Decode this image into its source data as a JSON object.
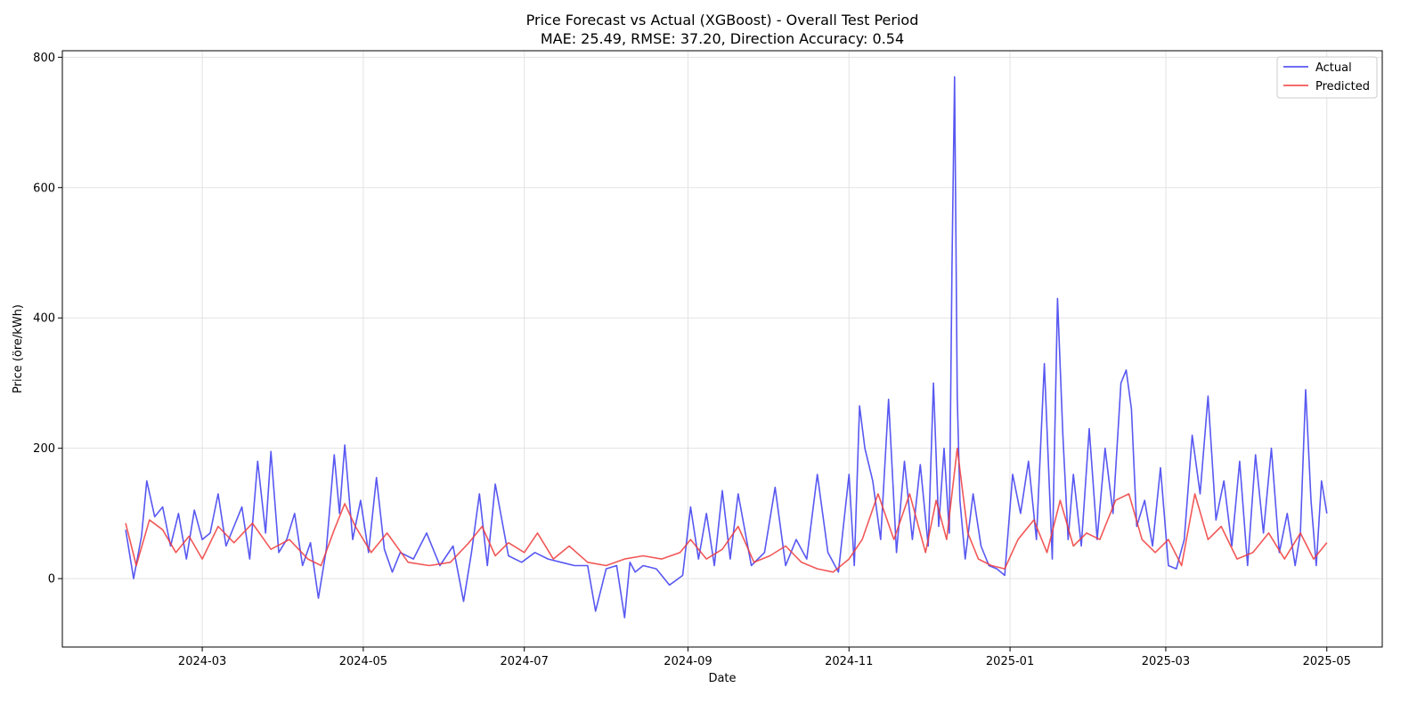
{
  "chart_data": {
    "type": "line",
    "title": "Price Forecast vs Actual (XGBoost) - Overall Test Period",
    "subtitle": "MAE: 25.49, RMSE: 37.20, Direction Accuracy: 0.54",
    "xlabel": "Date",
    "ylabel": "Price (öre/kWh)",
    "x_range": [
      "2024-01-08",
      "2025-05-22"
    ],
    "ylim": [
      -105,
      810
    ],
    "x_ticks": [
      {
        "date": "2024-03-01",
        "label": "2024-03"
      },
      {
        "date": "2024-05-01",
        "label": "2024-05"
      },
      {
        "date": "2024-07-01",
        "label": "2024-07"
      },
      {
        "date": "2024-09-01",
        "label": "2024-09"
      },
      {
        "date": "2024-11-01",
        "label": "2024-11"
      },
      {
        "date": "2025-01-01",
        "label": "2025-01"
      },
      {
        "date": "2025-03-01",
        "label": "2025-03"
      },
      {
        "date": "2025-05-01",
        "label": "2025-05"
      }
    ],
    "y_ticks": [
      0,
      200,
      400,
      600,
      800
    ],
    "grid": true,
    "legend": "top-right",
    "series": [
      {
        "name": "Actual",
        "color": "#3b3bf0",
        "x": [
          "2024-02-01",
          "2024-02-04",
          "2024-02-07",
          "2024-02-09",
          "2024-02-12",
          "2024-02-15",
          "2024-02-18",
          "2024-02-21",
          "2024-02-24",
          "2024-02-27",
          "2024-03-01",
          "2024-03-04",
          "2024-03-07",
          "2024-03-10",
          "2024-03-13",
          "2024-03-16",
          "2024-03-19",
          "2024-03-22",
          "2024-03-25",
          "2024-03-27",
          "2024-03-30",
          "2024-04-02",
          "2024-04-05",
          "2024-04-08",
          "2024-04-11",
          "2024-04-14",
          "2024-04-17",
          "2024-04-20",
          "2024-04-22",
          "2024-04-24",
          "2024-04-27",
          "2024-04-30",
          "2024-05-03",
          "2024-05-06",
          "2024-05-09",
          "2024-05-12",
          "2024-05-15",
          "2024-05-20",
          "2024-05-25",
          "2024-05-30",
          "2024-06-04",
          "2024-06-08",
          "2024-06-11",
          "2024-06-14",
          "2024-06-17",
          "2024-06-20",
          "2024-06-25",
          "2024-06-30",
          "2024-07-05",
          "2024-07-10",
          "2024-07-15",
          "2024-07-20",
          "2024-07-25",
          "2024-07-28",
          "2024-08-01",
          "2024-08-05",
          "2024-08-08",
          "2024-08-10",
          "2024-08-12",
          "2024-08-15",
          "2024-08-20",
          "2024-08-25",
          "2024-08-30",
          "2024-09-02",
          "2024-09-05",
          "2024-09-08",
          "2024-09-11",
          "2024-09-14",
          "2024-09-17",
          "2024-09-20",
          "2024-09-25",
          "2024-09-30",
          "2024-10-04",
          "2024-10-08",
          "2024-10-12",
          "2024-10-16",
          "2024-10-20",
          "2024-10-24",
          "2024-10-28",
          "2024-11-01",
          "2024-11-03",
          "2024-11-05",
          "2024-11-07",
          "2024-11-10",
          "2024-11-13",
          "2024-11-16",
          "2024-11-19",
          "2024-11-22",
          "2024-11-25",
          "2024-11-28",
          "2024-12-01",
          "2024-12-03",
          "2024-12-05",
          "2024-12-07",
          "2024-12-09",
          "2024-12-10",
          "2024-12-11",
          "2024-12-12",
          "2024-12-13",
          "2024-12-15",
          "2024-12-18",
          "2024-12-21",
          "2024-12-24",
          "2024-12-27",
          "2024-12-30",
          "2025-01-02",
          "2025-01-05",
          "2025-01-08",
          "2025-01-11",
          "2025-01-14",
          "2025-01-17",
          "2025-01-19",
          "2025-01-21",
          "2025-01-23",
          "2025-01-25",
          "2025-01-28",
          "2025-01-31",
          "2025-02-03",
          "2025-02-06",
          "2025-02-09",
          "2025-02-12",
          "2025-02-14",
          "2025-02-16",
          "2025-02-18",
          "2025-02-21",
          "2025-02-24",
          "2025-02-27",
          "2025-03-02",
          "2025-03-05",
          "2025-03-08",
          "2025-03-11",
          "2025-03-14",
          "2025-03-17",
          "2025-03-20",
          "2025-03-23",
          "2025-03-26",
          "2025-03-29",
          "2025-04-01",
          "2025-04-04",
          "2025-04-07",
          "2025-04-10",
          "2025-04-13",
          "2025-04-16",
          "2025-04-19",
          "2025-04-21",
          "2025-04-23",
          "2025-04-25",
          "2025-04-27",
          "2025-04-29",
          "2025-05-01"
        ],
        "y": [
          75,
          0,
          65,
          150,
          95,
          110,
          50,
          100,
          30,
          105,
          60,
          70,
          130,
          50,
          80,
          110,
          30,
          180,
          70,
          195,
          40,
          60,
          100,
          20,
          55,
          -30,
          45,
          190,
          100,
          205,
          60,
          120,
          40,
          155,
          45,
          10,
          40,
          30,
          70,
          20,
          50,
          -35,
          40,
          130,
          20,
          145,
          35,
          25,
          40,
          30,
          25,
          20,
          20,
          -50,
          15,
          20,
          -60,
          25,
          10,
          20,
          15,
          -10,
          5,
          110,
          30,
          100,
          20,
          135,
          30,
          130,
          20,
          40,
          140,
          20,
          60,
          30,
          160,
          40,
          10,
          160,
          20,
          265,
          200,
          150,
          60,
          275,
          40,
          180,
          60,
          175,
          50,
          300,
          80,
          200,
          70,
          480,
          770,
          280,
          120,
          30,
          130,
          50,
          20,
          15,
          5,
          160,
          100,
          180,
          60,
          330,
          30,
          430,
          220,
          60,
          160,
          50,
          230,
          60,
          200,
          100,
          300,
          320,
          260,
          80,
          120,
          50,
          170,
          20,
          15,
          60,
          220,
          130,
          280,
          90,
          150,
          50,
          180,
          20,
          190,
          70,
          200,
          40,
          100,
          20,
          70,
          290,
          120,
          20,
          150,
          100
        ],
        "note": ""
      },
      {
        "name": "Predicted",
        "color": "#f03b3b",
        "x": [
          "2024-02-01",
          "2024-02-05",
          "2024-02-10",
          "2024-02-15",
          "2024-02-20",
          "2024-02-25",
          "2024-03-01",
          "2024-03-07",
          "2024-03-13",
          "2024-03-20",
          "2024-03-27",
          "2024-04-03",
          "2024-04-10",
          "2024-04-15",
          "2024-04-20",
          "2024-04-24",
          "2024-04-28",
          "2024-05-04",
          "2024-05-10",
          "2024-05-18",
          "2024-05-26",
          "2024-06-03",
          "2024-06-10",
          "2024-06-15",
          "2024-06-20",
          "2024-06-25",
          "2024-07-01",
          "2024-07-06",
          "2024-07-12",
          "2024-07-18",
          "2024-07-25",
          "2024-08-01",
          "2024-08-08",
          "2024-08-15",
          "2024-08-22",
          "2024-08-29",
          "2024-09-02",
          "2024-09-08",
          "2024-09-14",
          "2024-09-20",
          "2024-09-26",
          "2024-10-02",
          "2024-10-08",
          "2024-10-14",
          "2024-10-20",
          "2024-10-26",
          "2024-11-01",
          "2024-11-06",
          "2024-11-12",
          "2024-11-18",
          "2024-11-24",
          "2024-11-30",
          "2024-12-04",
          "2024-12-08",
          "2024-12-12",
          "2024-12-16",
          "2024-12-20",
          "2024-12-25",
          "2024-12-30",
          "2025-01-04",
          "2025-01-10",
          "2025-01-15",
          "2025-01-20",
          "2025-01-25",
          "2025-01-30",
          "2025-02-04",
          "2025-02-10",
          "2025-02-15",
          "2025-02-20",
          "2025-02-25",
          "2025-03-02",
          "2025-03-07",
          "2025-03-12",
          "2025-03-17",
          "2025-03-22",
          "2025-03-28",
          "2025-04-03",
          "2025-04-09",
          "2025-04-15",
          "2025-04-21",
          "2025-04-26",
          "2025-05-01"
        ],
        "y": [
          85,
          20,
          90,
          75,
          40,
          65,
          30,
          80,
          55,
          85,
          45,
          60,
          30,
          20,
          75,
          115,
          80,
          40,
          70,
          25,
          20,
          25,
          55,
          80,
          35,
          55,
          40,
          70,
          30,
          50,
          25,
          20,
          30,
          35,
          30,
          40,
          60,
          30,
          45,
          80,
          25,
          35,
          50,
          25,
          15,
          10,
          30,
          60,
          130,
          60,
          130,
          40,
          120,
          60,
          200,
          70,
          30,
          20,
          15,
          60,
          90,
          40,
          120,
          50,
          70,
          60,
          120,
          130,
          60,
          40,
          60,
          20,
          130,
          60,
          80,
          30,
          40,
          70,
          30,
          70,
          30,
          55
        ]
      }
    ]
  }
}
